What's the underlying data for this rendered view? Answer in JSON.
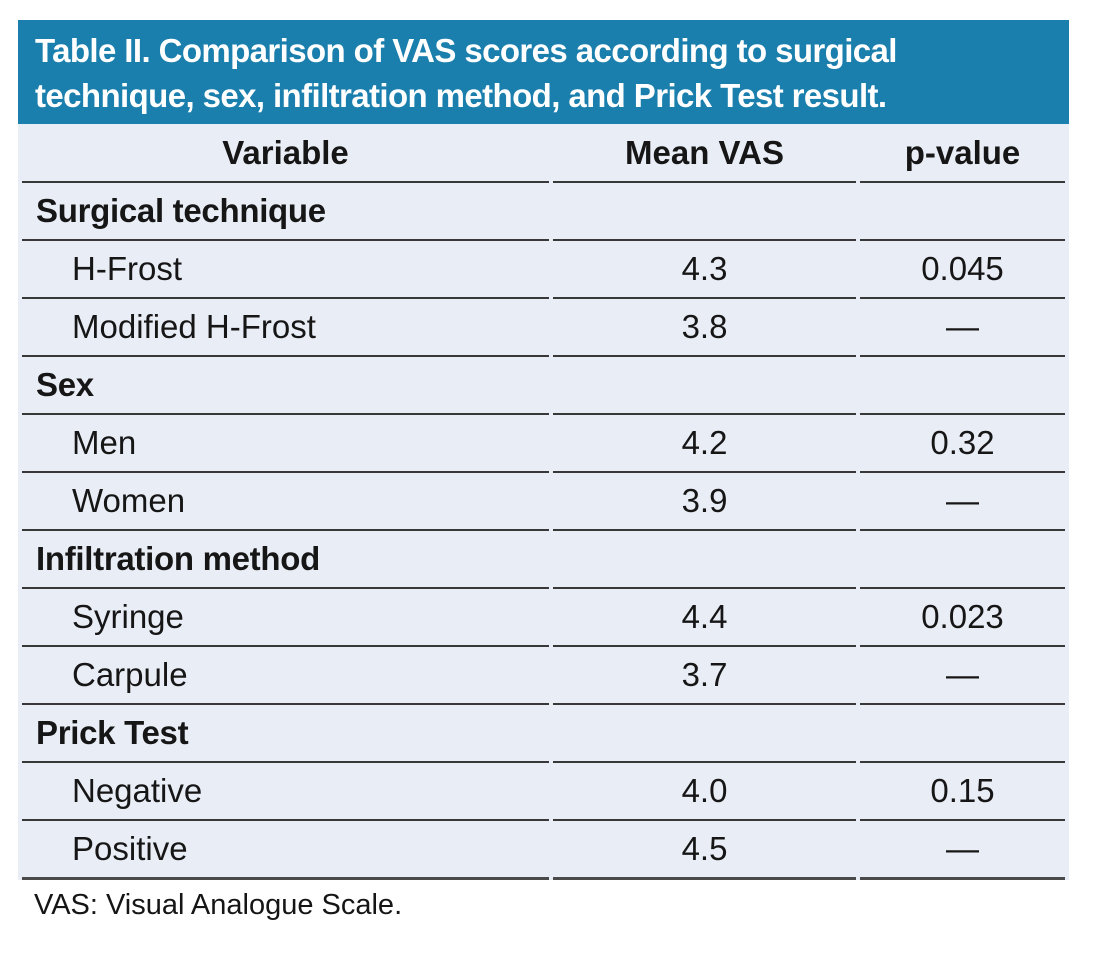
{
  "title": {
    "line1": "Table II. Comparison of VAS scores according to surgical",
    "line2": "technique, sex, infiltration method, and Prick Test result."
  },
  "columns": [
    "Variable",
    "Mean VAS",
    "p-value"
  ],
  "sections": [
    {
      "label": "Surgical technique",
      "rows": [
        {
          "variable": "H-Frost",
          "mean_vas": "4.3",
          "p_value": "0.045"
        },
        {
          "variable": "Modified H-Frost",
          "mean_vas": "3.8",
          "p_value": "—"
        }
      ]
    },
    {
      "label": "Sex",
      "rows": [
        {
          "variable": "Men",
          "mean_vas": "4.2",
          "p_value": "0.32"
        },
        {
          "variable": "Women",
          "mean_vas": "3.9",
          "p_value": "—"
        }
      ]
    },
    {
      "label": "Infiltration method",
      "rows": [
        {
          "variable": "Syringe",
          "mean_vas": "4.4",
          "p_value": "0.023"
        },
        {
          "variable": "Carpule",
          "mean_vas": "3.7",
          "p_value": "—"
        }
      ]
    },
    {
      "label": "Prick Test",
      "rows": [
        {
          "variable": "Negative",
          "mean_vas": "4.0",
          "p_value": "0.15"
        },
        {
          "variable": "Positive",
          "mean_vas": "4.5",
          "p_value": "—"
        }
      ]
    }
  ],
  "footnote": "VAS: Visual Analogue Scale.",
  "colors": {
    "title_bar_bg": "#1a7fad",
    "title_text": "#ffffff",
    "row_bg": "#e9edf6",
    "rule": "#383838",
    "text": "#161616",
    "page_bg": "#ffffff"
  }
}
